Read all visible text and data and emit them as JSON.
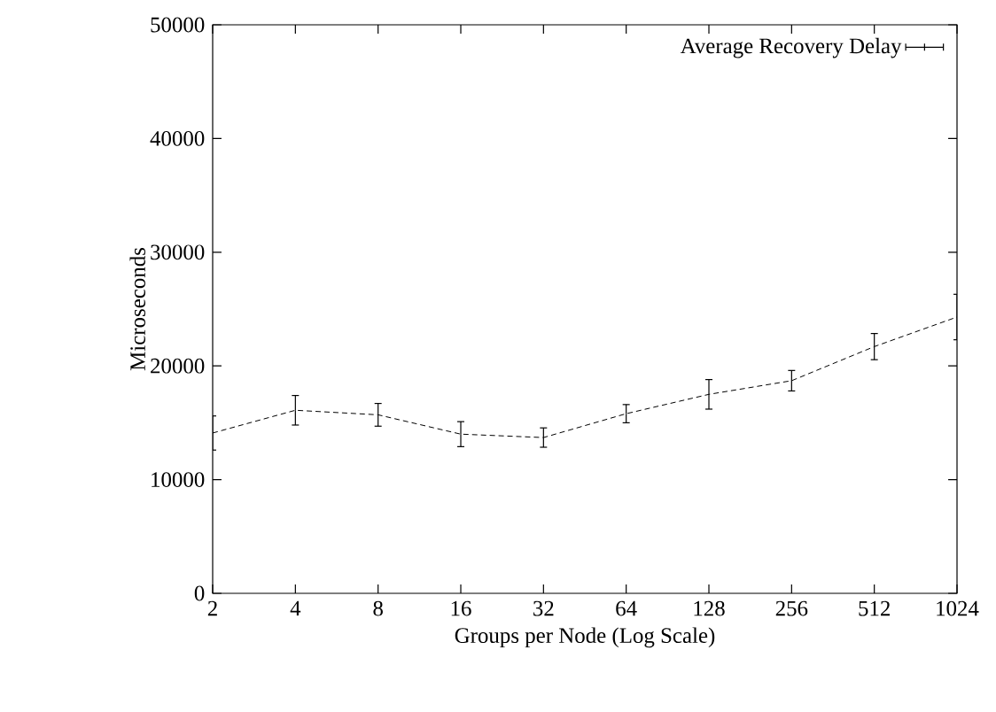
{
  "chart_data": {
    "type": "line",
    "xlabel": "Groups per Node (Log Scale)",
    "ylabel": "Microseconds",
    "x": [
      2,
      4,
      8,
      16,
      32,
      64,
      128,
      256,
      512,
      1024
    ],
    "series": [
      {
        "name": "Average Recovery Delay",
        "color": "#000000",
        "values": [
          14100,
          16100,
          15700,
          14000,
          13700,
          15800,
          17500,
          18700,
          21700,
          24300
        ],
        "errors": [
          1500,
          1300,
          1000,
          1100,
          850,
          800,
          1300,
          900,
          1150,
          2000
        ]
      }
    ],
    "log": "x",
    "line_style": "dashed",
    "marker": "none",
    "legend": "top right",
    "grid": false,
    "xlim": [
      2,
      1024
    ],
    "ylim": [
      0,
      50000
    ],
    "xticks": [
      2,
      4,
      8,
      16,
      32,
      64,
      128,
      256,
      512,
      1024
    ],
    "yticks": [
      0,
      10000,
      20000,
      30000,
      40000,
      50000
    ]
  }
}
